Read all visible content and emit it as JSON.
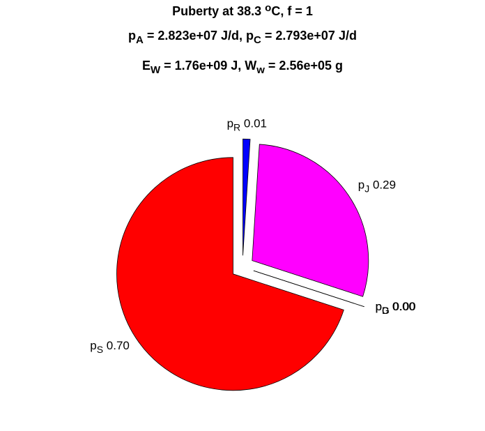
{
  "chart_data": {
    "type": "pie",
    "title": [
      [
        {
          "text": "Puberty at 38.3 "
        },
        {
          "text": "o",
          "shift": "sup"
        },
        {
          "text": "C, f = 1"
        }
      ],
      [
        {
          "text": "p"
        },
        {
          "text": "A",
          "shift": "sub"
        },
        {
          "text": " = 2.823e+07 J/d,  p"
        },
        {
          "text": "C",
          "shift": "sub"
        },
        {
          "text": " = 2.793e+07 J/d"
        }
      ],
      [
        {
          "text": "E"
        },
        {
          "text": "W",
          "shift": "sub"
        },
        {
          "text": " = 1.76e+09 J, W"
        },
        {
          "text": "w",
          "shift": "sub"
        },
        {
          "text": " = 2.56e+05 g"
        }
      ]
    ],
    "symbol": "p",
    "categories": [
      "R",
      "J",
      "D",
      "G",
      "S"
    ],
    "values": [
      0.01,
      0.29,
      0,
      0,
      0.7
    ],
    "value_labels": [
      "0.01",
      "0.29",
      "0.00",
      "0.00",
      "0.70"
    ],
    "colors": [
      "#0000ff",
      "#ff00ff",
      "#00ffff",
      "#ffff00",
      "#ff0000"
    ],
    "explode": true
  }
}
